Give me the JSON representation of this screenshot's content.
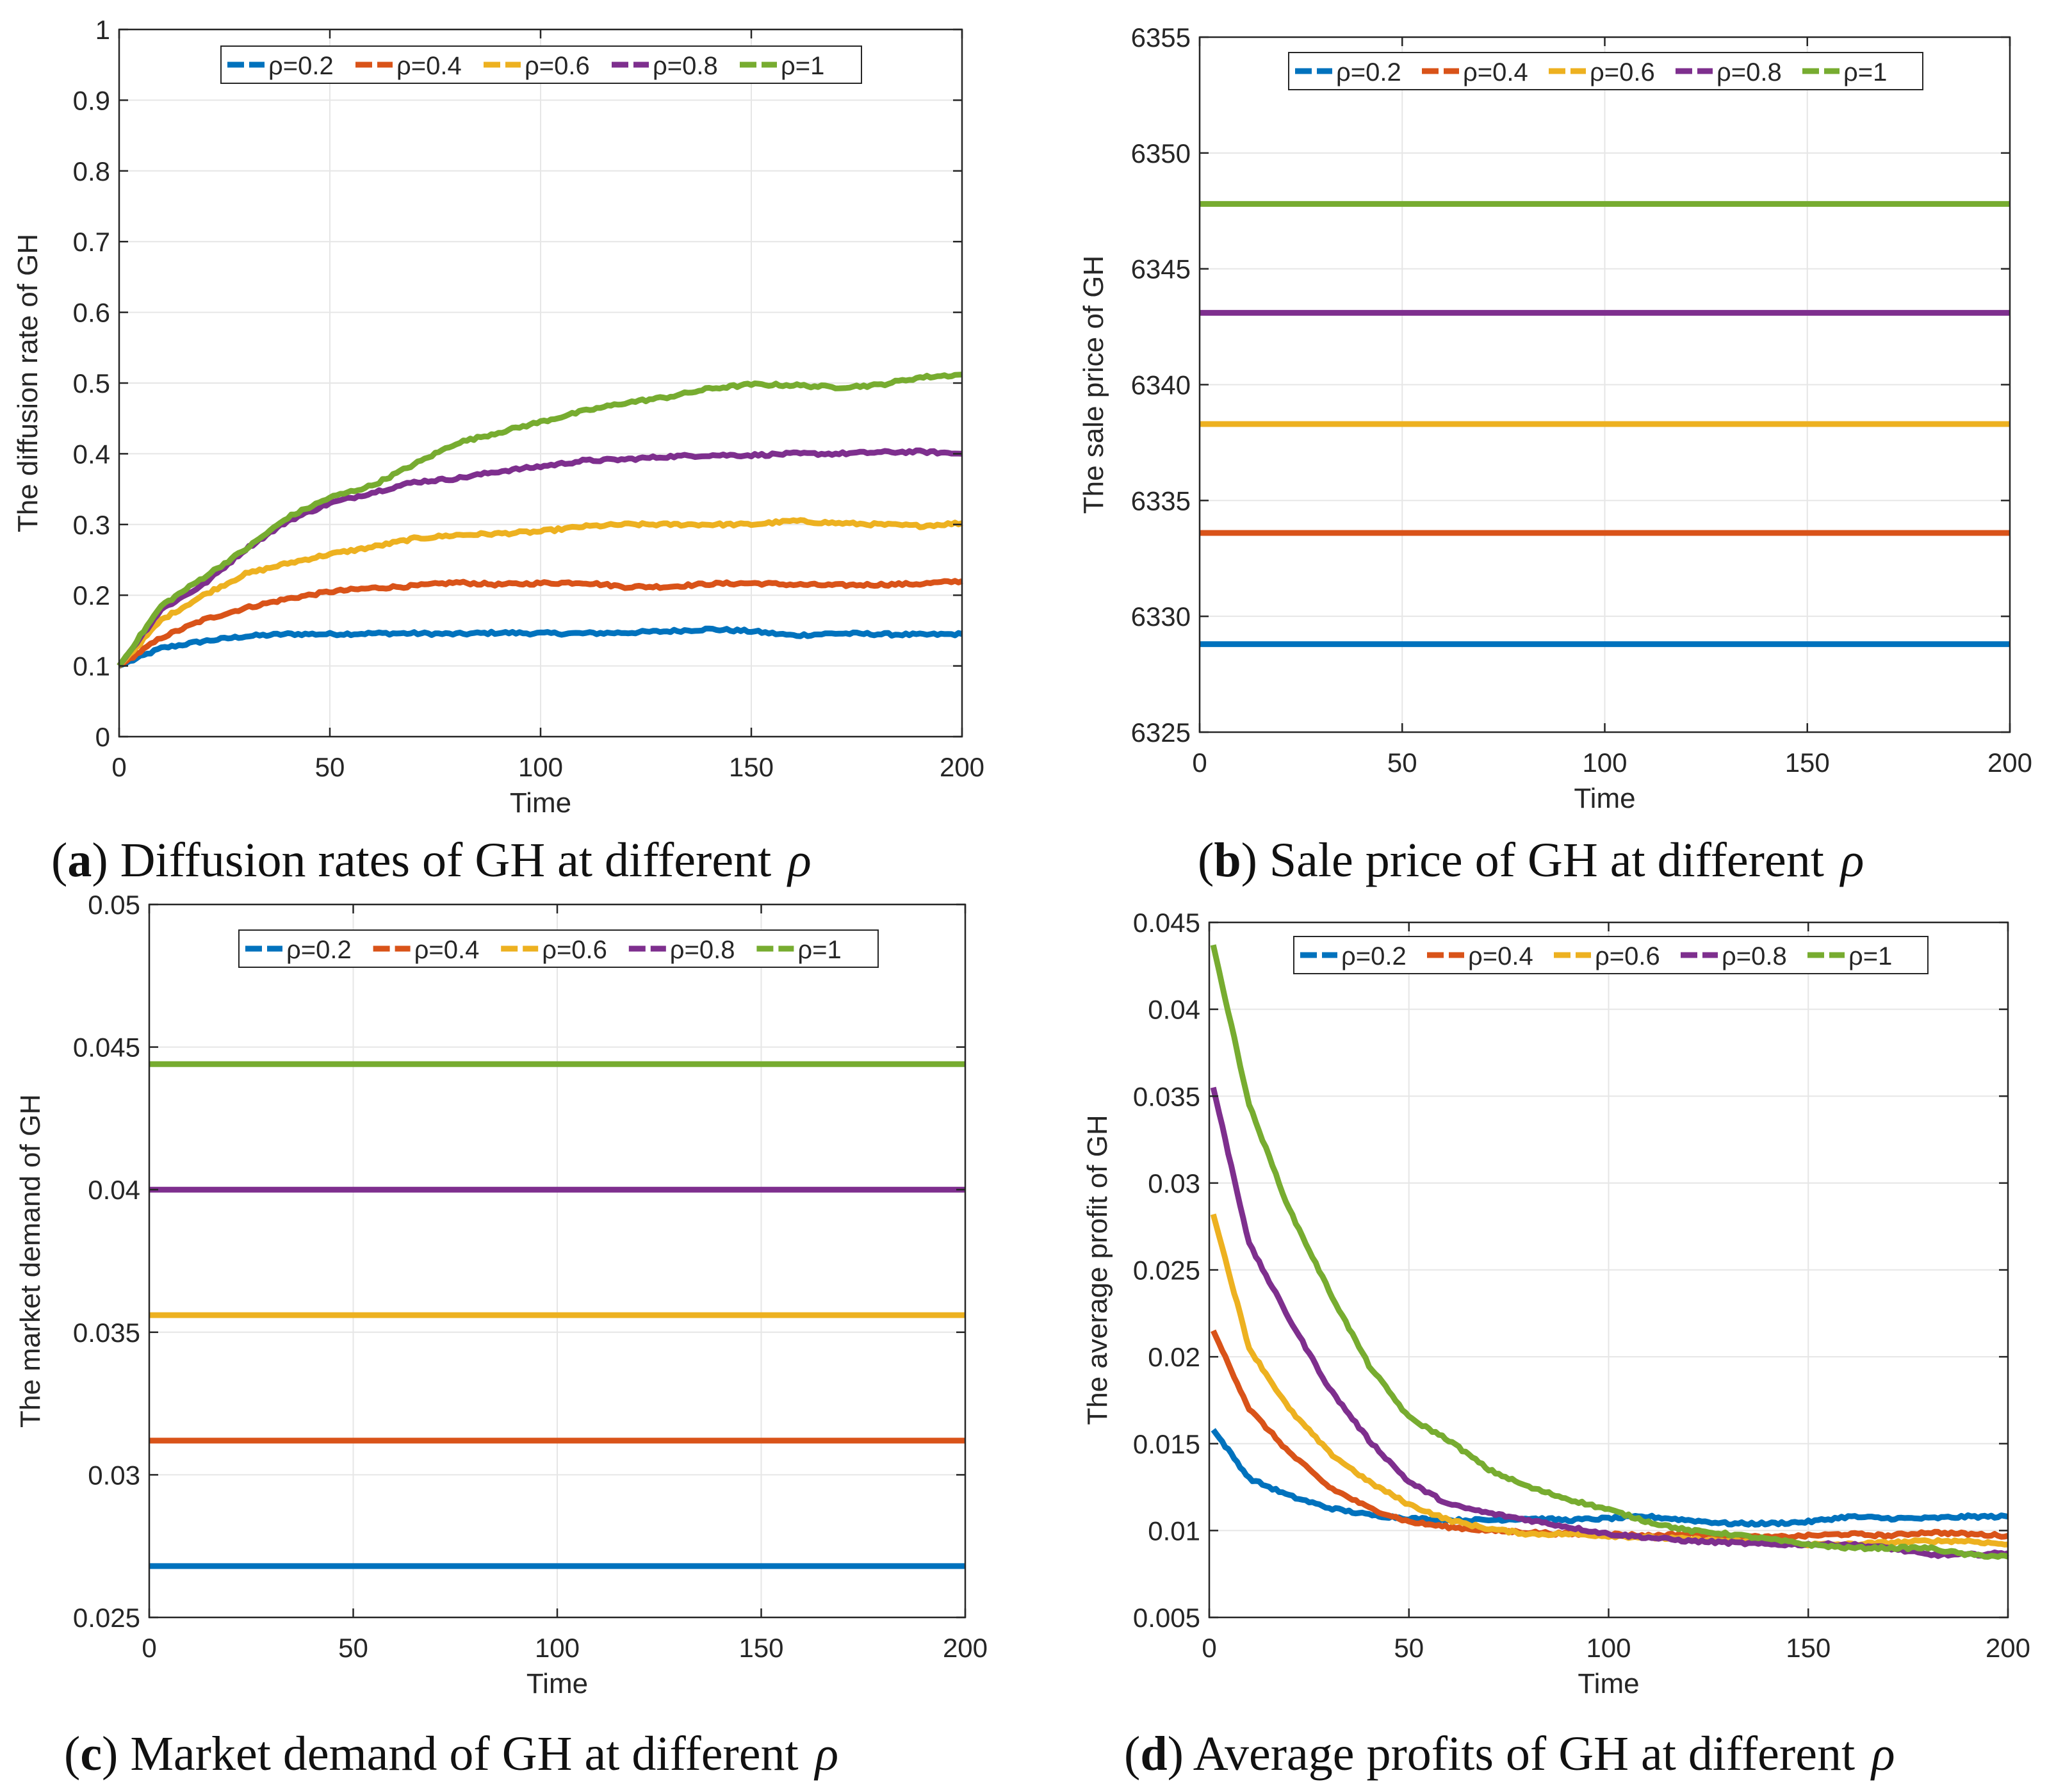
{
  "colors": {
    "rho_0_2": "#0072BD",
    "rho_0_4": "#D95319",
    "rho_0_6": "#EDB120",
    "rho_0_8": "#7E2F8E",
    "rho_1": "#77AC30",
    "grid": "#e6e6e6",
    "axis": "#262626"
  },
  "legend_labels": [
    "ρ=0.2",
    "ρ=0.4",
    "ρ=0.6",
    "ρ=0.8",
    "ρ=1"
  ],
  "captions": [
    {
      "letter": "a",
      "text": "Diffusion rates of GH at different",
      "symbol": "ρ"
    },
    {
      "letter": "b",
      "text": "Sale price of GH at different",
      "symbol": "ρ"
    },
    {
      "letter": "c",
      "text": "Market demand of GH at different",
      "symbol": "ρ"
    },
    {
      "letter": "d",
      "text": "Average profits of GH at different",
      "symbol": "ρ"
    }
  ],
  "chart_data": [
    {
      "id": "a",
      "type": "line",
      "xlabel": "Time",
      "ylabel": "The diffusion rate of GH",
      "xlim": [
        0,
        200
      ],
      "ylim": [
        0,
        1
      ],
      "xticks": [
        0,
        50,
        100,
        150,
        200
      ],
      "yticks": [
        0,
        0.1,
        0.2,
        0.3,
        0.4,
        0.5,
        0.6,
        0.7,
        0.8,
        0.9,
        1
      ],
      "ytick_labels": [
        "0",
        "0.1",
        "0.2",
        "0.3",
        "0.4",
        "0.5",
        "0.6",
        "0.7",
        "0.8",
        "0.9",
        "1"
      ],
      "grid": true,
      "legend": "top",
      "x": [
        0,
        10,
        20,
        30,
        40,
        50,
        60,
        70,
        80,
        90,
        100,
        110,
        120,
        130,
        140,
        150,
        160,
        170,
        180,
        190,
        200
      ],
      "series": [
        {
          "name": "ρ=0.2",
          "values": [
            0.1,
            0.125,
            0.135,
            0.142,
            0.145,
            0.145,
            0.146,
            0.146,
            0.145,
            0.147,
            0.146,
            0.146,
            0.147,
            0.149,
            0.152,
            0.149,
            0.143,
            0.146,
            0.145,
            0.144,
            0.145
          ]
        },
        {
          "name": "ρ=0.4",
          "values": [
            0.1,
            0.14,
            0.165,
            0.182,
            0.195,
            0.205,
            0.21,
            0.213,
            0.218,
            0.215,
            0.217,
            0.218,
            0.212,
            0.212,
            0.216,
            0.217,
            0.215,
            0.214,
            0.215,
            0.216,
            0.22
          ]
        },
        {
          "name": "ρ=0.6",
          "values": [
            0.1,
            0.165,
            0.2,
            0.23,
            0.245,
            0.258,
            0.268,
            0.28,
            0.285,
            0.287,
            0.29,
            0.297,
            0.3,
            0.3,
            0.3,
            0.3,
            0.305,
            0.302,
            0.3,
            0.298,
            0.302
          ]
        },
        {
          "name": "ρ=0.8",
          "values": [
            0.1,
            0.18,
            0.215,
            0.265,
            0.305,
            0.33,
            0.345,
            0.36,
            0.365,
            0.375,
            0.382,
            0.39,
            0.392,
            0.396,
            0.398,
            0.398,
            0.4,
            0.4,
            0.402,
            0.403,
            0.4
          ]
        },
        {
          "name": "ρ=1",
          "values": [
            0.1,
            0.185,
            0.225,
            0.265,
            0.31,
            0.338,
            0.355,
            0.385,
            0.415,
            0.43,
            0.445,
            0.46,
            0.472,
            0.48,
            0.492,
            0.498,
            0.497,
            0.494,
            0.497,
            0.508,
            0.512
          ]
        }
      ]
    },
    {
      "id": "b",
      "type": "line",
      "xlabel": "Time",
      "ylabel": "The sale price of GH",
      "xlim": [
        0,
        200
      ],
      "ylim": [
        6325,
        6355
      ],
      "xticks": [
        0,
        50,
        100,
        150,
        200
      ],
      "yticks": [
        6325,
        6330,
        6335,
        6340,
        6345,
        6350,
        6355
      ],
      "ytick_labels": [
        "6325",
        "6330",
        "6335",
        "6340",
        "6345",
        "6350",
        "6355"
      ],
      "grid": true,
      "legend": "top",
      "x": [
        0,
        200
      ],
      "series": [
        {
          "name": "ρ=0.2",
          "values": [
            6328.8,
            6328.8
          ]
        },
        {
          "name": "ρ=0.4",
          "values": [
            6333.6,
            6333.6
          ]
        },
        {
          "name": "ρ=0.6",
          "values": [
            6338.3,
            6338.3
          ]
        },
        {
          "name": "ρ=0.8",
          "values": [
            6343.1,
            6343.1
          ]
        },
        {
          "name": "ρ=1",
          "values": [
            6347.8,
            6347.8
          ]
        }
      ]
    },
    {
      "id": "c",
      "type": "line",
      "xlabel": "Time",
      "ylabel": "The market demand of GH",
      "xlim": [
        0,
        200
      ],
      "ylim": [
        0.025,
        0.05
      ],
      "xticks": [
        0,
        50,
        100,
        150,
        200
      ],
      "yticks": [
        0.025,
        0.03,
        0.035,
        0.04,
        0.045,
        0.05
      ],
      "ytick_labels": [
        "0.025",
        "0.03",
        "0.035",
        "0.04",
        "0.045",
        "0.05"
      ],
      "grid": true,
      "legend": "top",
      "x": [
        0,
        200
      ],
      "series": [
        {
          "name": "ρ=0.2",
          "values": [
            0.0268,
            0.0268
          ]
        },
        {
          "name": "ρ=0.4",
          "values": [
            0.0312,
            0.0312
          ]
        },
        {
          "name": "ρ=0.6",
          "values": [
            0.0356,
            0.0356
          ]
        },
        {
          "name": "ρ=0.8",
          "values": [
            0.04,
            0.04
          ]
        },
        {
          "name": "ρ=1",
          "values": [
            0.0444,
            0.0444
          ]
        }
      ]
    },
    {
      "id": "d",
      "type": "line",
      "xlabel": "Time",
      "ylabel": "The average profit of GH",
      "xlim": [
        0,
        200
      ],
      "ylim": [
        0.005,
        0.045
      ],
      "xticks": [
        0,
        50,
        100,
        150,
        200
      ],
      "yticks": [
        0.005,
        0.01,
        0.015,
        0.02,
        0.025,
        0.03,
        0.035,
        0.04,
        0.045
      ],
      "ytick_labels": [
        "0.005",
        "0.01",
        "0.015",
        "0.02",
        "0.025",
        "0.03",
        "0.035",
        "0.04",
        "0.045"
      ],
      "grid": true,
      "legend": "top",
      "x": [
        1,
        10,
        20,
        30,
        40,
        50,
        60,
        70,
        80,
        90,
        100,
        110,
        120,
        130,
        140,
        150,
        160,
        170,
        180,
        190,
        200
      ],
      "series": [
        {
          "name": "ρ=0.2",
          "values": [
            0.0158,
            0.013,
            0.012,
            0.0113,
            0.0109,
            0.0107,
            0.0106,
            0.0106,
            0.0107,
            0.0106,
            0.0107,
            0.0108,
            0.0106,
            0.0104,
            0.0104,
            0.0105,
            0.0108,
            0.0107,
            0.0107,
            0.0108,
            0.0108
          ]
        },
        {
          "name": "ρ=0.4",
          "values": [
            0.0215,
            0.017,
            0.0145,
            0.0125,
            0.0113,
            0.0105,
            0.0102,
            0.01,
            0.0099,
            0.0098,
            0.0098,
            0.0097,
            0.0098,
            0.0097,
            0.0096,
            0.0097,
            0.0098,
            0.0097,
            0.0099,
            0.0098,
            0.0097
          ]
        },
        {
          "name": "ρ=0.6",
          "values": [
            0.0282,
            0.0205,
            0.017,
            0.0145,
            0.0128,
            0.0115,
            0.0106,
            0.0101,
            0.0098,
            0.0098,
            0.0097,
            0.0096,
            0.0095,
            0.0094,
            0.0093,
            0.0092,
            0.0092,
            0.0093,
            0.0094,
            0.0094,
            0.0092
          ]
        },
        {
          "name": "ρ=0.8",
          "values": [
            0.0355,
            0.0265,
            0.0222,
            0.0182,
            0.0152,
            0.0128,
            0.0115,
            0.011,
            0.0106,
            0.0102,
            0.0098,
            0.0096,
            0.0094,
            0.0093,
            0.0092,
            0.0092,
            0.0092,
            0.009,
            0.0086,
            0.0086,
            0.0087
          ]
        },
        {
          "name": "ρ=1",
          "values": [
            0.0437,
            0.0345,
            0.0285,
            0.0238,
            0.0195,
            0.0165,
            0.0152,
            0.0135,
            0.0125,
            0.0118,
            0.0112,
            0.0105,
            0.01,
            0.0098,
            0.0095,
            0.0092,
            0.009,
            0.009,
            0.009,
            0.0086,
            0.0085
          ]
        }
      ]
    }
  ]
}
